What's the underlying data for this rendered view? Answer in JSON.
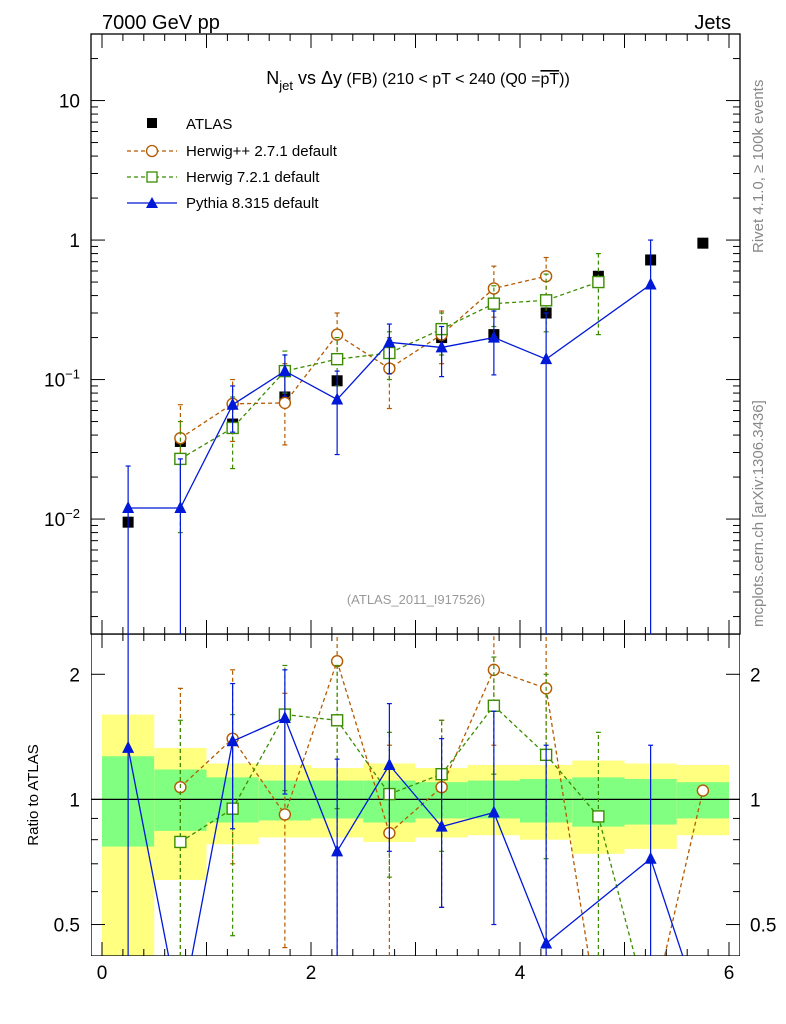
{
  "header": {
    "left": "7000 GeV pp",
    "right": "Jets"
  },
  "side": {
    "rivet": "Rivet 4.1.0, ≥ 100k events",
    "mcplots": "mcplots.cern.ch [arXiv:1306.3436]"
  },
  "title": {
    "n": "N",
    "sub": "jet",
    "vs": " vs ",
    "delta": "Δ",
    "y": "y",
    "fb": " (FB) ",
    "range": "(210 < pT < 240 (Q0 =",
    "bar": "pT",
    "close": "))"
  },
  "watermark": "(ATLAS_2011_I917526)",
  "ratio_label": "Ratio to ATLAS",
  "colors": {
    "atlas": "#000000",
    "herwigpp": "#b35a00",
    "herwig7": "#3c8c00",
    "pythia": "#0018d8",
    "band_outer": "#ffff80",
    "band_inner": "#80ff80"
  },
  "chart_data": {
    "type": "scatter",
    "x_bins": [
      [
        0,
        0.5
      ],
      [
        0.5,
        1
      ],
      [
        1,
        1.5
      ],
      [
        1.5,
        2
      ],
      [
        2,
        2.5
      ],
      [
        2.5,
        3
      ],
      [
        3,
        3.5
      ],
      [
        3.5,
        4
      ],
      [
        4,
        4.5
      ],
      [
        4.5,
        5
      ],
      [
        5,
        5.5
      ],
      [
        5.5,
        6
      ]
    ],
    "x_centers": [
      0.25,
      0.75,
      1.25,
      1.75,
      2.25,
      2.75,
      3.25,
      3.75,
      4.25,
      4.75,
      5.25,
      5.75
    ],
    "main": {
      "yscale": "log",
      "ylim": [
        0.0015,
        30
      ],
      "y_ticks": [
        {
          "v": 0.01,
          "b": "10",
          "e": "−2"
        },
        {
          "v": 0.1,
          "b": "10",
          "e": "−1"
        },
        {
          "v": 1,
          "b": "1",
          "e": ""
        },
        {
          "v": 10,
          "b": "10",
          "e": ""
        }
      ],
      "x_ticks_show_labels": false
    },
    "ratio": {
      "yscale": "log",
      "ylim": [
        0.42,
        2.5
      ],
      "y_ticks": [
        {
          "v": 0.5,
          "label": "0.5"
        },
        {
          "v": 1,
          "label": "1"
        },
        {
          "v": 2,
          "label": "2"
        }
      ],
      "x_ticks": [
        {
          "v": 0,
          "label": "0"
        },
        {
          "v": 2,
          "label": "2"
        },
        {
          "v": 4,
          "label": "4"
        },
        {
          "v": 6,
          "label": "6"
        }
      ],
      "band_outer": [
        [
          0.42,
          1.6
        ],
        [
          0.64,
          1.33
        ],
        [
          0.78,
          1.22
        ],
        [
          0.81,
          1.21
        ],
        [
          0.81,
          1.19
        ],
        [
          0.79,
          1.22
        ],
        [
          0.81,
          1.19
        ],
        [
          0.82,
          1.21
        ],
        [
          0.8,
          1.21
        ],
        [
          0.74,
          1.24
        ],
        [
          0.76,
          1.22
        ],
        [
          0.82,
          1.21
        ]
      ],
      "band_inner": [
        [
          0.77,
          1.27
        ],
        [
          0.84,
          1.18
        ],
        [
          0.88,
          1.13
        ],
        [
          0.89,
          1.11
        ],
        [
          0.9,
          1.11
        ],
        [
          0.88,
          1.11
        ],
        [
          0.9,
          1.1
        ],
        [
          0.9,
          1.11
        ],
        [
          0.88,
          1.12
        ],
        [
          0.86,
          1.13
        ],
        [
          0.87,
          1.12
        ],
        [
          0.9,
          1.1
        ]
      ]
    },
    "series": [
      {
        "name": "ATLAS",
        "key": "atlas",
        "marker": "square-filled",
        "line": "none",
        "color": "#000000",
        "x": [
          0.25,
          0.75,
          1.25,
          1.75,
          2.25,
          2.75,
          3.25,
          3.75,
          4.25,
          4.75,
          5.25,
          5.75
        ],
        "y": [
          0.0095,
          0.036,
          0.048,
          0.075,
          0.098,
          0.155,
          0.2,
          0.21,
          0.3,
          0.55,
          0.72,
          0.95
        ],
        "ratio": [
          1,
          1,
          1,
          1,
          1,
          1,
          1,
          1,
          1,
          1,
          1,
          1
        ]
      },
      {
        "name": "Herwig++ 2.7.1 default",
        "key": "herwigpp",
        "marker": "circle-open",
        "line": "dashed",
        "color": "#b35a00",
        "x": [
          0.75,
          1.25,
          1.75,
          2.25,
          2.75,
          3.25,
          3.75,
          4.25
        ],
        "y": [
          0.038,
          0.067,
          0.068,
          0.21,
          0.12,
          0.21,
          0.45,
          0.55
        ],
        "yerr": [
          [
            0.012,
            0.066
          ],
          [
            0.036,
            0.1
          ],
          [
            0.034,
            0.13
          ],
          [
            0.14,
            0.3
          ],
          [
            0.062,
            0.2
          ],
          [
            0.13,
            0.31
          ],
          [
            0.28,
            0.65
          ],
          [
            0.35,
            0.75
          ]
        ],
        "ratio_x": [
          0.75,
          1.25,
          1.75,
          2.25,
          2.75,
          3.25,
          3.75,
          4.25,
          4.75,
          5.25,
          5.75
        ],
        "ratio": [
          1.07,
          1.4,
          0.92,
          2.15,
          0.83,
          1.07,
          2.05,
          1.85,
          0.3,
          0.3,
          1.05
        ],
        "ratio_err": [
          [
            0.3,
            1.85
          ],
          [
            0.7,
            2.05
          ],
          [
            0.44,
            1.8
          ],
          [
            0.3,
            2.5
          ],
          [
            0.37,
            1.35
          ],
          [
            0.55,
            1.55
          ],
          [
            1.35,
            2.5
          ],
          [
            0.42,
            2.5
          ],
          null,
          null,
          null
        ]
      },
      {
        "name": "Herwig 7.2.1 default",
        "key": "herwig7",
        "marker": "square-open",
        "line": "dashed",
        "color": "#3c8c00",
        "x": [
          0.75,
          1.25,
          1.75,
          2.25,
          2.75,
          3.25,
          3.75,
          4.25,
          4.75
        ],
        "y": [
          0.027,
          0.045,
          0.115,
          0.14,
          0.155,
          0.23,
          0.35,
          0.37,
          0.5
        ],
        "yerr": [
          [
            0.008,
            0.05
          ],
          [
            0.023,
            0.075
          ],
          [
            0.08,
            0.16
          ],
          [
            0.09,
            0.2
          ],
          [
            0.1,
            0.22
          ],
          [
            0.15,
            0.3
          ],
          [
            0.24,
            0.47
          ],
          [
            0.22,
            0.57
          ],
          [
            0.21,
            0.8
          ]
        ],
        "ratio_x": [
          0.75,
          1.25,
          1.75,
          2.25,
          2.75,
          3.25,
          3.75,
          4.25,
          4.75,
          5.25
        ],
        "ratio": [
          0.79,
          0.95,
          1.6,
          1.55,
          1.03,
          1.15,
          1.68,
          1.28,
          0.91,
          0.3
        ],
        "ratio_err": [
          [
            0.3,
            1.55
          ],
          [
            0.47,
            1.6
          ],
          [
            1.05,
            2.1
          ],
          [
            0.95,
            2.1
          ],
          [
            0.65,
            1.45
          ],
          [
            0.75,
            1.55
          ],
          [
            1.15,
            2.2
          ],
          [
            0.72,
            2.0
          ],
          [
            0.38,
            1.45
          ],
          null
        ]
      },
      {
        "name": "Pythia 8.315 default",
        "key": "pythia",
        "marker": "triangle-filled",
        "line": "solid",
        "color": "#0018d8",
        "x": [
          0.25,
          0.75,
          1.25,
          1.75,
          2.25,
          2.75,
          3.25,
          3.75,
          4.25,
          5.25
        ],
        "y": [
          0.012,
          0.012,
          0.066,
          0.115,
          0.072,
          0.185,
          0.17,
          0.2,
          0.14,
          0.48
        ],
        "yerr": [
          [
            0.0001,
            0.024
          ],
          [
            0.0001,
            0.027
          ],
          [
            0.042,
            0.09
          ],
          [
            0.076,
            0.15
          ],
          [
            0.029,
            0.115
          ],
          [
            0.11,
            0.25
          ],
          [
            0.105,
            0.24
          ],
          [
            0.108,
            0.31
          ],
          [
            0.0001,
            0.3
          ],
          [
            0.0001,
            1.0
          ]
        ],
        "ratio_x": [
          0.25,
          0.75,
          1.25,
          1.75,
          2.25,
          2.75,
          3.25,
          3.75,
          4.25,
          5.25,
          5.75
        ],
        "ratio": [
          1.33,
          0.3,
          1.38,
          1.57,
          0.75,
          1.21,
          0.86,
          0.93,
          0.45,
          0.72,
          0.3
        ],
        "ratio_err": [
          [
            0.3,
            2.5
          ],
          null,
          [
            0.85,
            1.9
          ],
          [
            1.03,
            2.05
          ],
          [
            0.3,
            1.25
          ],
          [
            0.75,
            1.7
          ],
          [
            0.55,
            1.4
          ],
          [
            0.5,
            1.63
          ],
          [
            0.3,
            1.35
          ],
          [
            0.3,
            1.35
          ],
          null
        ]
      }
    ]
  }
}
